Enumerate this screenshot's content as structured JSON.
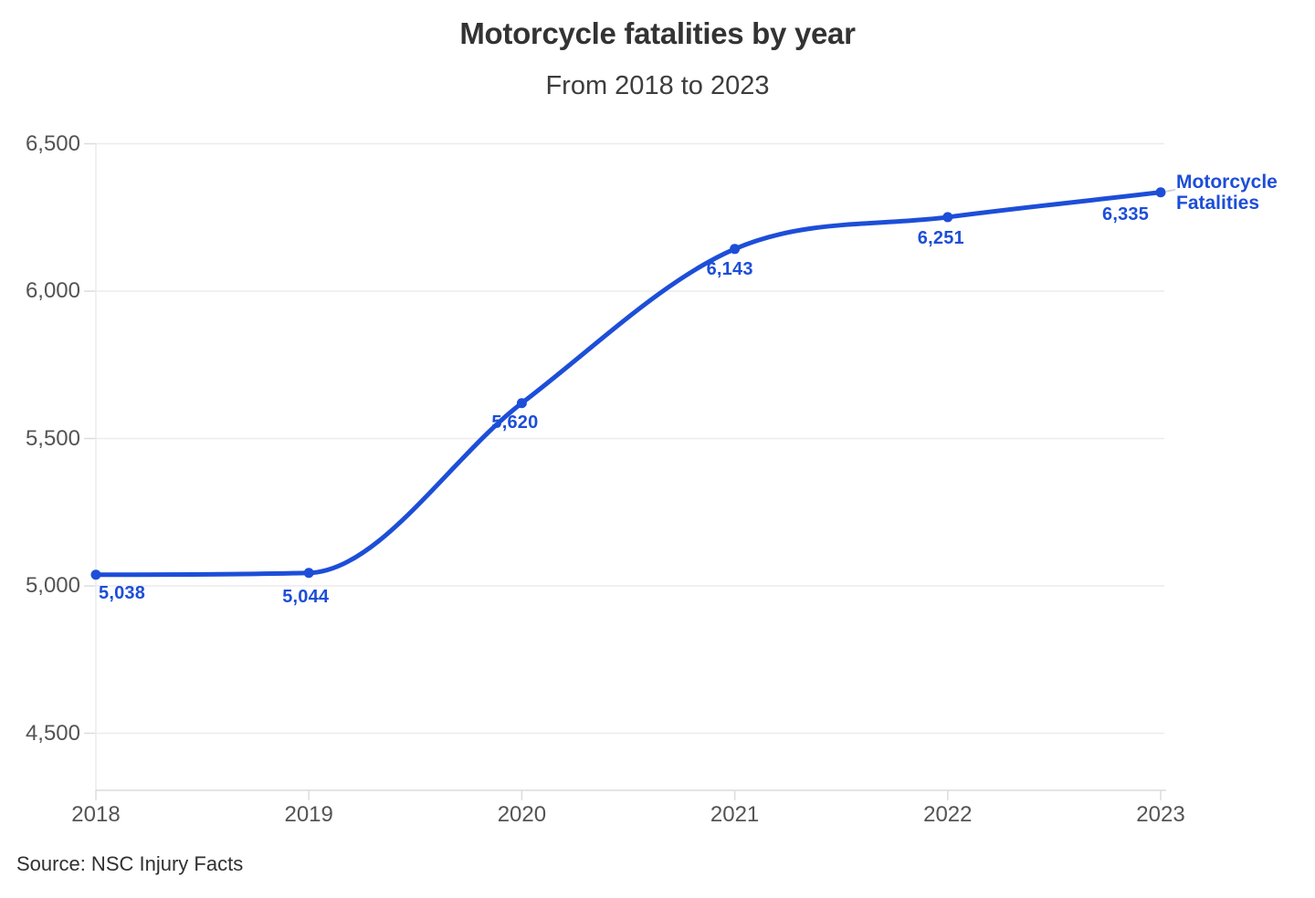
{
  "header": {
    "title": "Motorcycle fatalities by year",
    "subtitle": "From 2018 to 2023"
  },
  "series_label": {
    "line1": "Motorcycle",
    "line2": "Fatalities"
  },
  "footer": {
    "source": "Source: NSC Injury Facts"
  },
  "colors": {
    "accent": "#1d4ed8",
    "title_text": "#333333",
    "subtitle_text": "#3d3d3d",
    "axis_text": "#545454",
    "gridline": "#ececec",
    "axis_line": "#dcdcdc",
    "connector": "#cfcfcf",
    "source_text": "#303030"
  },
  "chart_data": {
    "type": "line",
    "title": "Motorcycle fatalities by year",
    "subtitle": "From 2018 to 2023",
    "categories": [
      "2018",
      "2019",
      "2020",
      "2021",
      "2022",
      "2023"
    ],
    "series": [
      {
        "name": "Motorcycle Fatalities",
        "values": [
          5038,
          5044,
          5620,
          6143,
          6251,
          6335
        ]
      }
    ],
    "point_labels": [
      "5,038",
      "5,044",
      "5,620",
      "6,143",
      "6,251",
      "6,335"
    ],
    "y_ticks": [
      {
        "label": "6,500",
        "value": 6500
      },
      {
        "label": "6,000",
        "value": 6000
      },
      {
        "label": "5,500",
        "value": 5500
      },
      {
        "label": "5,000",
        "value": 5000
      },
      {
        "label": "4,500",
        "value": 4500
      }
    ],
    "y_axis_range": [
      4300,
      6500
    ],
    "xlabel": "",
    "ylabel": "",
    "grid": "horizontal-only",
    "legend_position": "end-of-line-right",
    "line_style": "smooth-monotone",
    "source": "Source: NSC Injury Facts"
  }
}
